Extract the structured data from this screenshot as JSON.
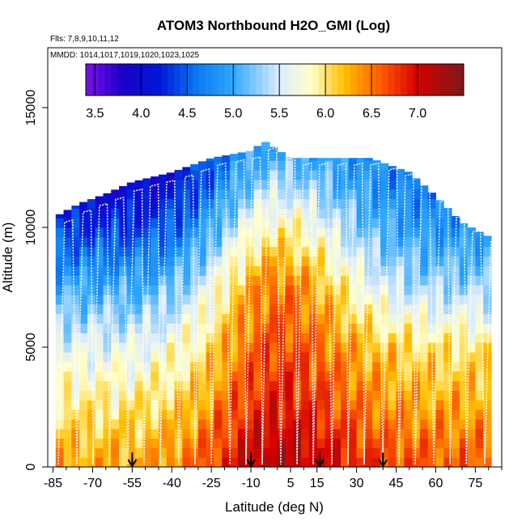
{
  "chart_data": {
    "type": "heatmap",
    "title": "ATOM3 Northbound H2O_GMI (Log)",
    "flights_label": "Flts: 7,8,9,10,11,12",
    "mmdd_label": "MMDD: 1014,1017,1019,1020,1023,1025",
    "xlabel": "Latitude (deg N)",
    "ylabel": "Altitude (m)",
    "xlim": [
      -87,
      85
    ],
    "ylim": [
      0,
      17500
    ],
    "x_ticks": [
      -85,
      -70,
      -55,
      -40,
      -25,
      -10,
      5,
      15,
      30,
      45,
      60,
      75
    ],
    "x_tick_labels": [
      "-85",
      "-70",
      "-55",
      "-40",
      "-25",
      "-10",
      "5",
      "15",
      "30",
      "45",
      "60",
      "75"
    ],
    "y_ticks": [
      0,
      5000,
      10000,
      15000
    ],
    "y_tick_labels": [
      "0",
      "5000",
      "10000",
      "15000"
    ],
    "colorbar": {
      "range": [
        3.4,
        7.5
      ],
      "ticks": [
        3.5,
        4.0,
        4.5,
        5.0,
        5.5,
        6.0,
        6.5,
        7.0
      ],
      "tick_labels": [
        "3.5",
        "4.0",
        "4.5",
        "5.0",
        "5.5",
        "6.0",
        "6.5",
        "7.0"
      ],
      "color_stops": [
        {
          "v": 3.4,
          "c": "#7a10e8"
        },
        {
          "v": 3.8,
          "c": "#1a00c8"
        },
        {
          "v": 4.2,
          "c": "#0018d8"
        },
        {
          "v": 4.6,
          "c": "#0a78f0"
        },
        {
          "v": 5.0,
          "c": "#30a8ff"
        },
        {
          "v": 5.5,
          "c": "#dcecff"
        },
        {
          "v": 5.85,
          "c": "#ffffc8"
        },
        {
          "v": 6.2,
          "c": "#ffc000"
        },
        {
          "v": 6.6,
          "c": "#ff5a00"
        },
        {
          "v": 7.0,
          "c": "#d40000"
        },
        {
          "v": 7.5,
          "c": "#7a1a1a"
        }
      ]
    },
    "column_tops_m": [
      {
        "lat": -85,
        "top": 10400
      },
      {
        "lat": -75,
        "top": 11000
      },
      {
        "lat": -65,
        "top": 11400
      },
      {
        "lat": -55,
        "top": 11900
      },
      {
        "lat": -40,
        "top": 12300
      },
      {
        "lat": -25,
        "top": 12900
      },
      {
        "lat": -10,
        "top": 13200
      },
      {
        "lat": -5,
        "top": 13600
      },
      {
        "lat": 5,
        "top": 12900
      },
      {
        "lat": 20,
        "top": 12900
      },
      {
        "lat": 35,
        "top": 12900
      },
      {
        "lat": 50,
        "top": 12300
      },
      {
        "lat": 60,
        "top": 11300
      },
      {
        "lat": 70,
        "top": 10200
      },
      {
        "lat": 82,
        "top": 9500
      }
    ],
    "log_h2o_by_altitude": [
      {
        "alt": 0,
        "south": 6.3,
        "tropics": 7.2,
        "north": 6.6
      },
      {
        "alt": 1000,
        "south": 6.2,
        "tropics": 7.1,
        "north": 6.5
      },
      {
        "alt": 2500,
        "south": 6.0,
        "tropics": 6.9,
        "north": 6.3
      },
      {
        "alt": 5000,
        "south": 5.6,
        "tropics": 6.7,
        "north": 6.0
      },
      {
        "alt": 7500,
        "south": 5.0,
        "tropics": 6.5,
        "north": 5.3
      },
      {
        "alt": 10000,
        "south": 4.3,
        "tropics": 5.9,
        "north": 4.8
      },
      {
        "alt": 12000,
        "south": 3.9,
        "tropics": 5.3,
        "north": 4.6
      },
      {
        "alt": 13500,
        "south": 4.2,
        "tropics": 4.9,
        "north": 4.8
      }
    ],
    "sounding_arrows_lat": [
      -55,
      -10,
      16,
      40
    ]
  }
}
